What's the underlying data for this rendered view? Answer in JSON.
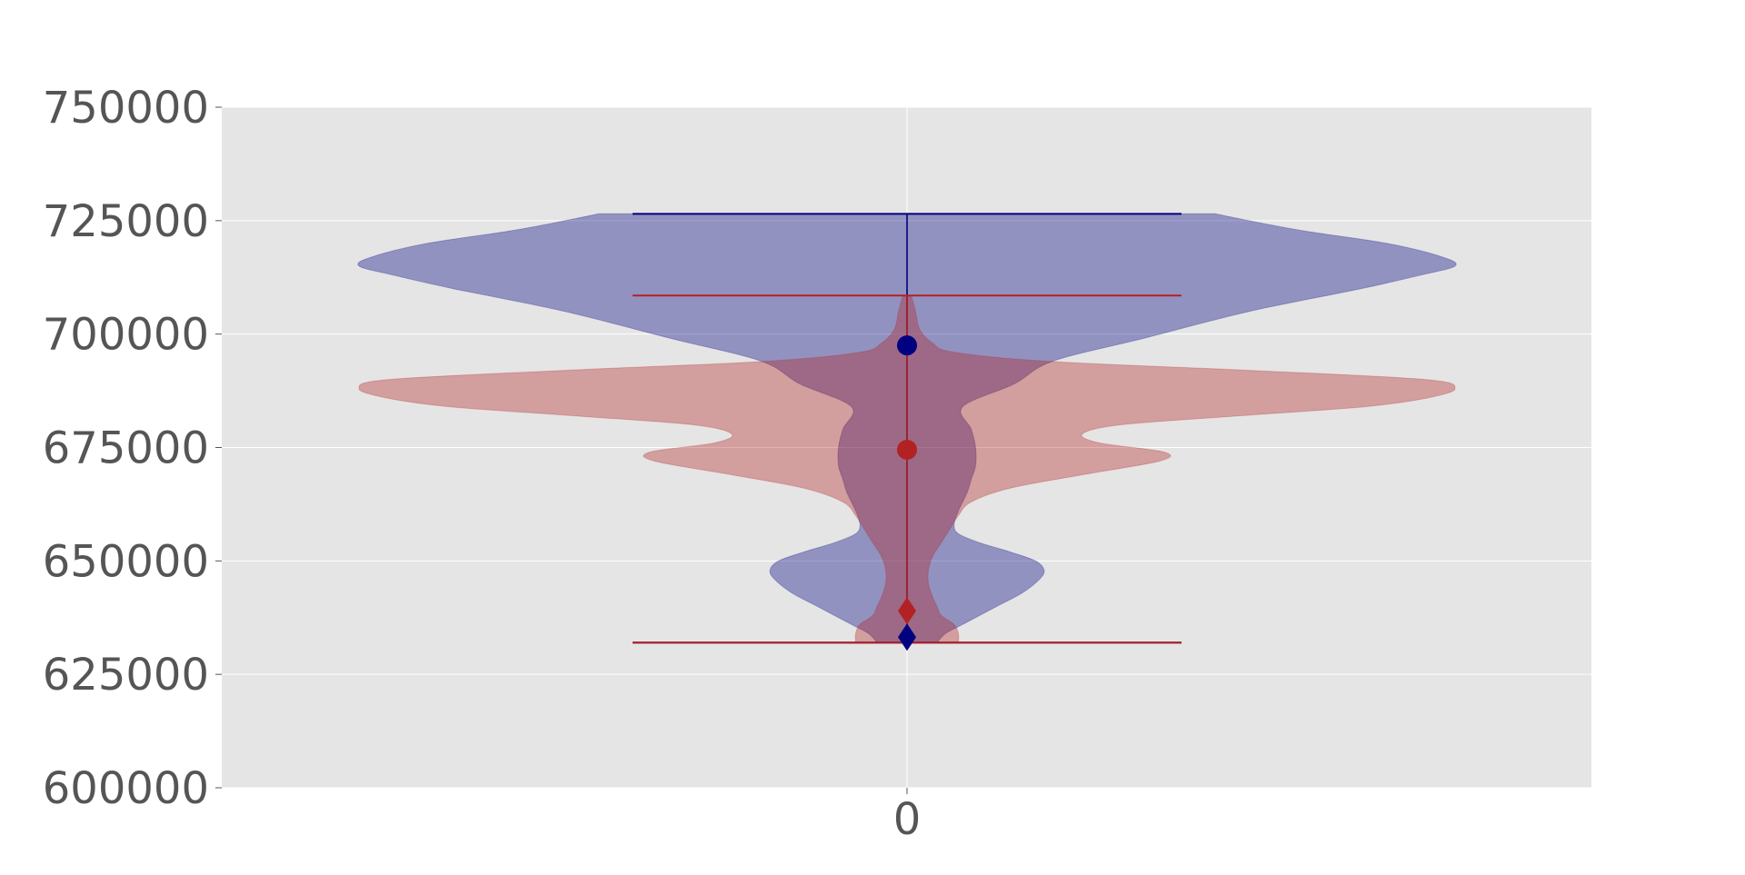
{
  "chart_data": {
    "type": "violin",
    "title": "",
    "xlabel": "",
    "ylabel": "",
    "categories": [
      "0"
    ],
    "ylim": [
      600000,
      750000
    ],
    "yticks": [
      600000,
      625000,
      650000,
      675000,
      700000,
      725000,
      750000
    ],
    "grid": true,
    "legend": "none",
    "background": "#e5e5e5",
    "series": [
      {
        "color": "#000080",
        "fill": "#9fa0c6",
        "min": 632000,
        "max": 726500,
        "median": 633200,
        "mean": 697500,
        "density": [
          [
            632000,
            0.07
          ],
          [
            634000,
            0.09
          ],
          [
            636000,
            0.13
          ],
          [
            638000,
            0.17
          ],
          [
            640000,
            0.21
          ],
          [
            643000,
            0.27
          ],
          [
            646000,
            0.31
          ],
          [
            648000,
            0.32
          ],
          [
            650000,
            0.3
          ],
          [
            652000,
            0.24
          ],
          [
            654000,
            0.17
          ],
          [
            656000,
            0.12
          ],
          [
            658000,
            0.11
          ],
          [
            661000,
            0.12
          ],
          [
            665000,
            0.14
          ],
          [
            668000,
            0.15
          ],
          [
            671000,
            0.16
          ],
          [
            675000,
            0.16
          ],
          [
            679000,
            0.15
          ],
          [
            684000,
            0.13
          ],
          [
            689000,
            0.25
          ],
          [
            694000,
            0.34
          ],
          [
            699000,
            0.55
          ],
          [
            705000,
            0.8
          ],
          [
            710000,
            1.06
          ],
          [
            713000,
            1.2
          ],
          [
            715000,
            1.28
          ],
          [
            717000,
            1.25
          ],
          [
            720000,
            1.12
          ],
          [
            723000,
            0.91
          ],
          [
            726500,
            0.72
          ]
        ]
      },
      {
        "color": "#b22222",
        "fill": "#d4a8ab",
        "min": 632000,
        "max": 708500,
        "median": 639000,
        "mean": 674500,
        "density": [
          [
            632000,
            0.12
          ],
          [
            634000,
            0.12
          ],
          [
            636000,
            0.11
          ],
          [
            638000,
            0.08
          ],
          [
            640000,
            0.07
          ],
          [
            642000,
            0.06
          ],
          [
            645000,
            0.05
          ],
          [
            648000,
            0.05
          ],
          [
            651000,
            0.06
          ],
          [
            654000,
            0.08
          ],
          [
            657000,
            0.1
          ],
          [
            660000,
            0.12
          ],
          [
            663000,
            0.15
          ],
          [
            666000,
            0.24
          ],
          [
            669000,
            0.41
          ],
          [
            672000,
            0.59
          ],
          [
            674000,
            0.6
          ],
          [
            676000,
            0.45
          ],
          [
            678000,
            0.41
          ],
          [
            680000,
            0.5
          ],
          [
            682000,
            0.78
          ],
          [
            684000,
            1.07
          ],
          [
            686000,
            1.22
          ],
          [
            688000,
            1.28
          ],
          [
            690000,
            1.21
          ],
          [
            692000,
            0.8
          ],
          [
            694000,
            0.33
          ],
          [
            696000,
            0.11
          ],
          [
            698000,
            0.06
          ],
          [
            701000,
            0.03
          ],
          [
            705000,
            0.02
          ],
          [
            708500,
            0.01
          ]
        ]
      }
    ]
  }
}
